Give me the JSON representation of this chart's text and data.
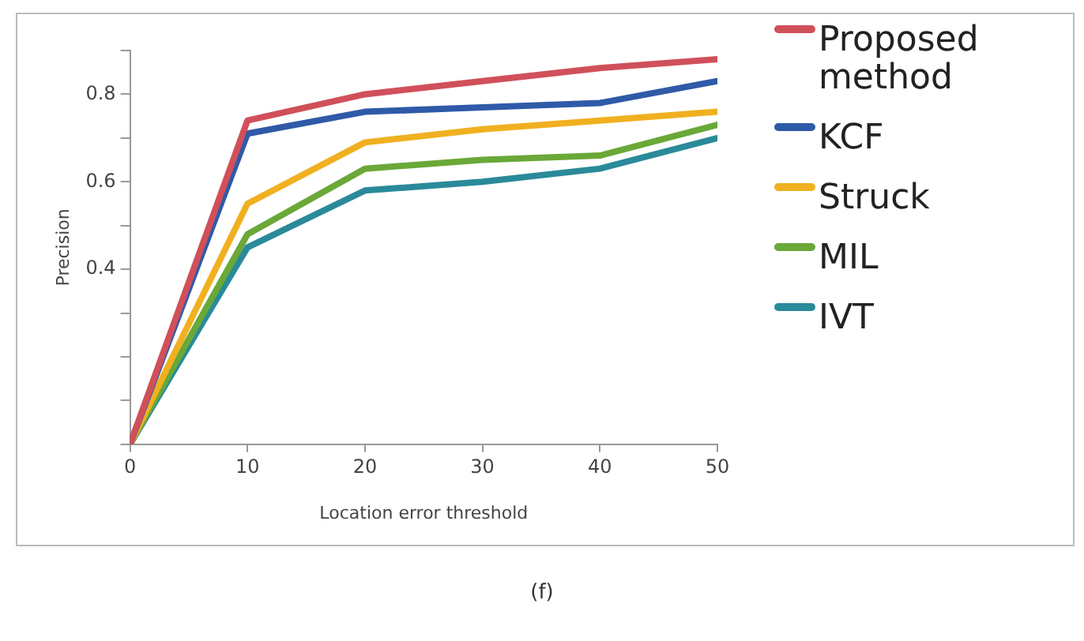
{
  "chart_data": {
    "type": "line",
    "xlabel": "Location error threshold",
    "ylabel": "Precision",
    "x": [
      0,
      10,
      20,
      30,
      40,
      50
    ],
    "xlim": [
      0,
      50
    ],
    "xticks": [
      0,
      10,
      20,
      30,
      40,
      50
    ],
    "ylim": [
      0,
      0.9
    ],
    "yticks": [
      {
        "value": 0,
        "label": null
      },
      {
        "value": 0.1,
        "label": null
      },
      {
        "value": 0.2,
        "label": null
      },
      {
        "value": 0.3,
        "label": null
      },
      0.4,
      {
        "value": 0.5,
        "label": null
      },
      0.6,
      {
        "value": 0.7,
        "label": null
      },
      0.8,
      {
        "value": 0.9,
        "label": null
      }
    ],
    "grid": false,
    "legend": "right",
    "marker": "none",
    "line_style": "solid",
    "annotations": [
      "(f)"
    ],
    "series": [
      {
        "name": "Proposed method",
        "color": "#d0505a",
        "values": [
          0,
          0.74,
          0.8,
          0.83,
          0.86,
          0.88
        ]
      },
      {
        "name": "KCF",
        "color": "#2f5aa8",
        "values": [
          0,
          0.71,
          0.76,
          0.77,
          0.78,
          0.83
        ]
      },
      {
        "name": "Struck",
        "color": "#f0b020",
        "values": [
          0,
          0.55,
          0.69,
          0.72,
          0.74,
          0.76
        ]
      },
      {
        "name": "MIL",
        "color": "#6aa838",
        "values": [
          0,
          0.48,
          0.63,
          0.65,
          0.66,
          0.73
        ]
      },
      {
        "name": "IVT",
        "color": "#2a8a9a",
        "values": [
          0,
          0.45,
          0.58,
          0.6,
          0.63,
          0.7
        ]
      }
    ]
  }
}
